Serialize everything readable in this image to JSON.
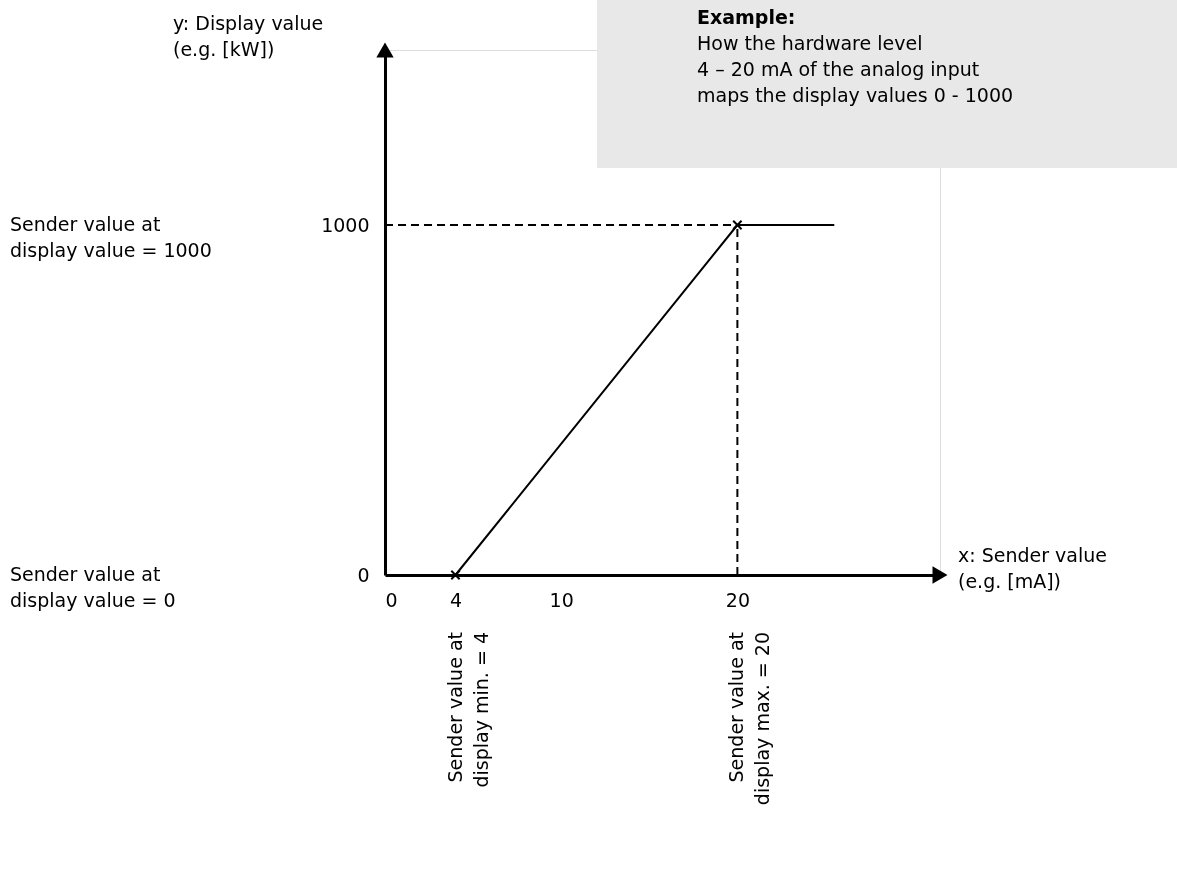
{
  "chart_data": {
    "type": "line",
    "title": "Example:",
    "subtitle": "How the hardware level\n4 – 20 mA of the analog input\nmaps the display values 0 - 1000",
    "xlabel": "x: Sender value\n(e.g. [mA])",
    "ylabel": "y: Display value\n(e.g. [kW])",
    "xlim": [
      0,
      31.5
    ],
    "ylim": [
      0,
      1500
    ],
    "xticks": [
      0,
      4,
      10,
      20
    ],
    "yticks": [
      0,
      1000
    ],
    "series": [
      {
        "color": "#000000",
        "x": [
          4,
          20,
          25.5
        ],
        "values": [
          0,
          1000,
          1000
        ],
        "line_style": "solid"
      },
      {
        "color": "#000000",
        "x": [
          0,
          20
        ],
        "values": [
          1000,
          1000
        ],
        "line_style": "dashed"
      },
      {
        "color": "#000000",
        "x": [
          20,
          20
        ],
        "values": [
          0,
          1000
        ],
        "line_style": "dashed"
      },
      {
        "type": "scatter",
        "color": "#000000",
        "x": [
          4,
          20
        ],
        "values": [
          0,
          1000
        ],
        "marker": "cross"
      }
    ],
    "annotations": [
      "Sender value at\ndisplay value = 1000",
      "Sender value at\ndisplay value = 0",
      "Sender value at\ndisplay min. = 4",
      "Sender value at\ndisplay max. = 20"
    ]
  }
}
